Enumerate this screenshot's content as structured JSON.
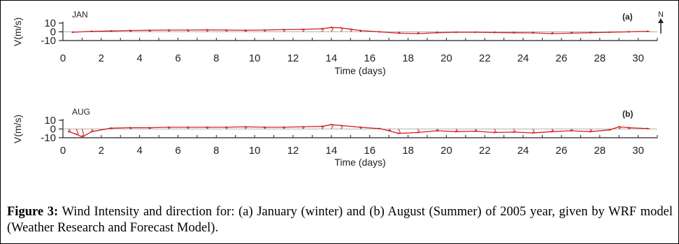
{
  "caption": {
    "label": "Figure 3:",
    "text": " Wind Intensity and direction for: (a) January (winter) and (b) August (Summer) of 2005 year, given by WRF model (Weather Research and Forecast Model)."
  },
  "north_label": "N",
  "colors": {
    "series": "#d11f1f",
    "axis": "#222222"
  },
  "chart_data": [
    {
      "type": "line",
      "panel": "(a)",
      "month": "JAN",
      "xlabel": "Time (days)",
      "ylabel": "V(m/s)",
      "xlim": [
        0,
        31
      ],
      "ylim": [
        -10,
        10
      ],
      "xticks": [
        0,
        2,
        4,
        6,
        8,
        10,
        12,
        14,
        16,
        18,
        20,
        22,
        24,
        26,
        28,
        30
      ],
      "yticks": [
        10,
        0,
        -10
      ],
      "x": [
        0.5,
        1.5,
        2.5,
        3.5,
        4.5,
        5.5,
        6.5,
        7.5,
        8.5,
        9.5,
        10.5,
        11.5,
        12.5,
        13.5,
        14.0,
        14.5,
        15.0,
        15.5,
        16.5,
        17.5,
        18.5,
        19.5,
        20.5,
        21.5,
        22.5,
        23.5,
        24.5,
        25.5,
        26.5,
        27.5,
        28.5,
        29.5,
        30.5
      ],
      "values": [
        -0.5,
        0.5,
        1.0,
        1.5,
        1.8,
        2.0,
        2.0,
        2.2,
        2.0,
        1.8,
        2.0,
        2.5,
        2.8,
        3.5,
        5.0,
        4.5,
        3.0,
        1.5,
        0.0,
        -1.5,
        -2.0,
        -1.0,
        -0.5,
        -0.5,
        -0.8,
        -1.0,
        -1.2,
        -2.0,
        -1.5,
        -1.0,
        -0.5,
        0.0,
        0.5
      ]
    },
    {
      "type": "line",
      "panel": "(b)",
      "month": "AUG",
      "xlabel": "Time (days)",
      "ylabel": "V(m/s)",
      "xlim": [
        0,
        31
      ],
      "ylim": [
        -10,
        10
      ],
      "xticks": [
        0,
        2,
        4,
        6,
        8,
        10,
        12,
        14,
        16,
        18,
        20,
        22,
        24,
        26,
        28,
        30
      ],
      "yticks": [
        10,
        0,
        -10
      ],
      "x": [
        0.3,
        0.7,
        1.0,
        1.5,
        2.5,
        3.5,
        4.5,
        5.5,
        6.5,
        7.5,
        8.5,
        9.5,
        10.5,
        11.5,
        12.5,
        13.5,
        14.0,
        14.5,
        15.5,
        16.5,
        17.0,
        17.5,
        18.5,
        19.5,
        20.5,
        21.5,
        22.5,
        23.5,
        24.5,
        25.5,
        26.5,
        27.5,
        28.5,
        29.0,
        29.5,
        30.5
      ],
      "values": [
        -3.0,
        -6.0,
        -9.0,
        -3.0,
        1.0,
        1.5,
        1.5,
        2.0,
        2.0,
        2.0,
        2.0,
        2.5,
        2.0,
        2.0,
        2.5,
        3.0,
        5.0,
        4.0,
        2.0,
        0.5,
        -2.0,
        -5.0,
        -4.0,
        -2.0,
        -3.0,
        -2.5,
        -4.0,
        -3.5,
        -4.5,
        -3.0,
        -2.0,
        -3.0,
        -1.0,
        2.5,
        1.5,
        0.5
      ]
    }
  ]
}
